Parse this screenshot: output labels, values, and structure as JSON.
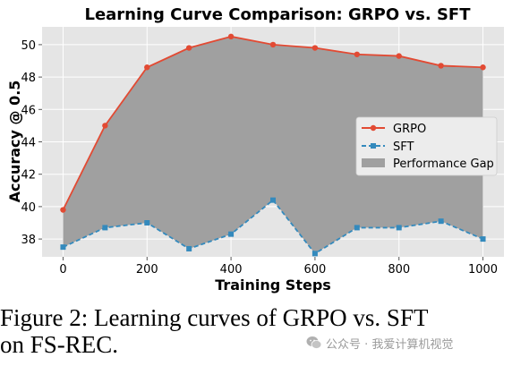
{
  "chart_data": {
    "type": "line",
    "title": "Learning Curve Comparison: GRPO vs. SFT",
    "xlabel": "Training Steps",
    "ylabel": "Accuracy @ 0.5",
    "x": [
      0,
      100,
      200,
      300,
      400,
      500,
      600,
      700,
      800,
      900,
      1000
    ],
    "xticks": [
      0,
      200,
      400,
      600,
      800,
      1000
    ],
    "yticks": [
      38,
      40,
      42,
      44,
      46,
      48,
      50
    ],
    "xlim": [
      -50,
      1050
    ],
    "ylim": [
      36.9,
      51.1
    ],
    "series": [
      {
        "name": "GRPO",
        "values": [
          39.8,
          45.0,
          48.6,
          49.8,
          50.5,
          50.0,
          49.8,
          49.4,
          49.3,
          48.7,
          48.6
        ],
        "color": "#e24a33",
        "marker": "circle",
        "linestyle": "solid"
      },
      {
        "name": "SFT",
        "values": [
          37.5,
          38.7,
          39.0,
          37.4,
          38.3,
          40.4,
          37.1,
          38.7,
          38.7,
          39.1,
          38.0
        ],
        "color": "#348abd",
        "marker": "square",
        "linestyle": "dashed"
      }
    ],
    "fill": {
      "name": "Performance Gap",
      "between": [
        "GRPO",
        "SFT"
      ],
      "color": "#a0a0a0"
    },
    "grid": true,
    "background": "#e5e5e5",
    "legend_position": "center-right"
  },
  "caption": {
    "line1": "Figure 2: Learning curves of GRPO vs. SFT",
    "line2": "on FS-REC."
  },
  "watermark": {
    "text": "公众号 · 我爱计算机视觉",
    "icon": "wechat-icon"
  }
}
